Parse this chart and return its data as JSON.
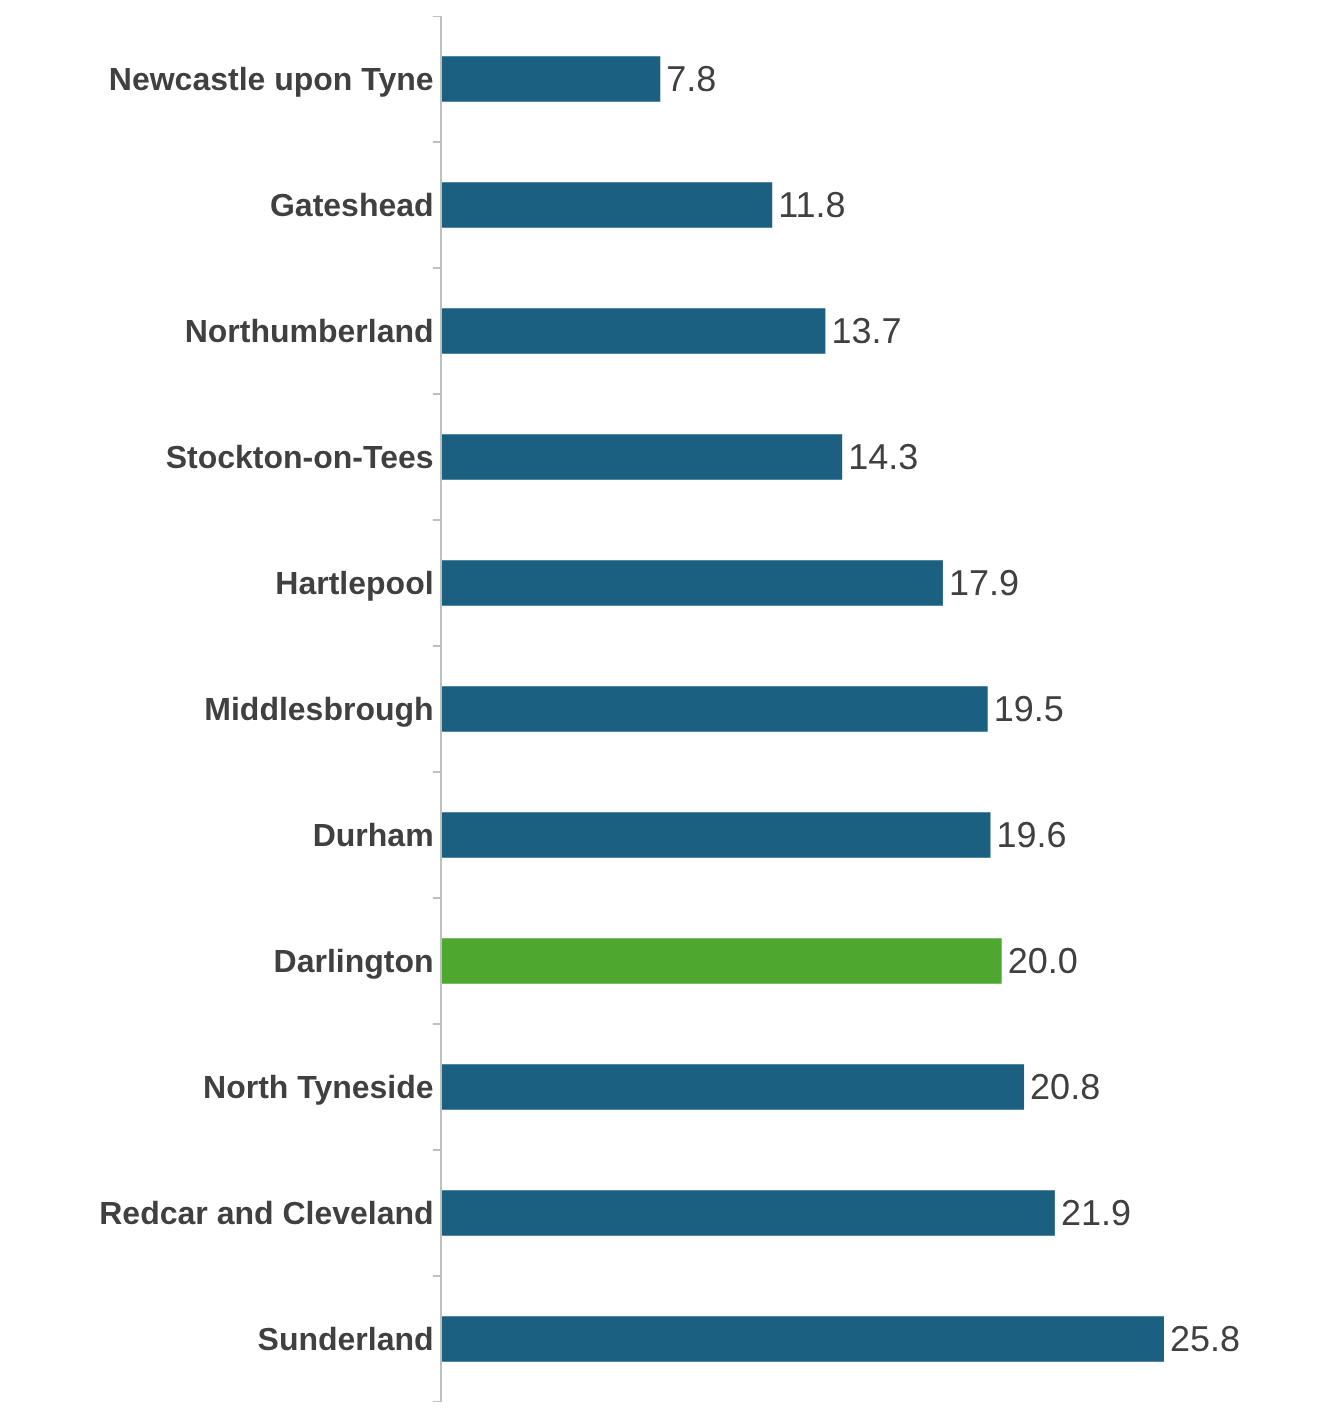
{
  "chart_data": {
    "type": "bar",
    "orientation": "horizontal",
    "categories": [
      "Newcastle upon Tyne",
      "Gateshead",
      "Northumberland",
      "Stockton-on-Tees",
      "Hartlepool",
      "Middlesbrough",
      "Durham",
      "Darlington",
      "North Tyneside",
      "Redcar and Cleveland",
      "Sunderland"
    ],
    "values": [
      7.8,
      11.8,
      13.7,
      14.3,
      17.9,
      19.5,
      19.6,
      20.0,
      20.8,
      21.9,
      25.8
    ],
    "colors": [
      "#1b6080",
      "#1b6080",
      "#1b6080",
      "#1b6080",
      "#1b6080",
      "#1b6080",
      "#1b6080",
      "#4ea72e",
      "#1b6080",
      "#1b6080",
      "#1b6080"
    ],
    "value_labels": [
      "7.8",
      "11.8",
      "13.7",
      "14.3",
      "17.9",
      "19.5",
      "19.6",
      "20.0",
      "20.8",
      "21.9",
      "25.8"
    ]
  }
}
